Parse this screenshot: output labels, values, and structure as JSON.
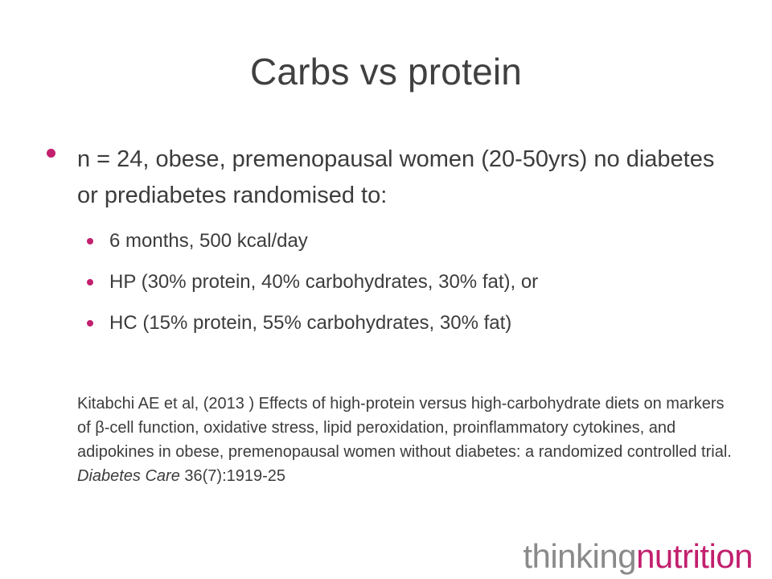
{
  "slide": {
    "title": "Carbs vs protein",
    "main_bullet": "n = 24, obese, premenopausal women (20-50yrs) no diabetes or prediabetes randomised to:",
    "sub_bullets": [
      "6 months, 500 kcal/day",
      "HP (30% protein, 40% carbohydrates, 30% fat), or",
      "HC (15% protein, 55% carbohydrates, 30% fat)"
    ],
    "citation": {
      "text": "Kitabchi AE et al, (2013 ) Effects of high-protein versus high-carbohydrate diets on markers of β-cell function, oxidative stress, lipid peroxidation, proinflammatory cytokines, and adipokines in obese, premenopausal women without diabetes: a randomized controlled trial. ",
      "journal": "Diabetes Care",
      "volume": " 36(7):1919-25"
    }
  },
  "logo": {
    "part1": "thinking",
    "part2": "nutrition"
  },
  "colors": {
    "accent": "#c2206e",
    "text": "#3c3c3c",
    "logo_grey": "#8a8a8a"
  }
}
